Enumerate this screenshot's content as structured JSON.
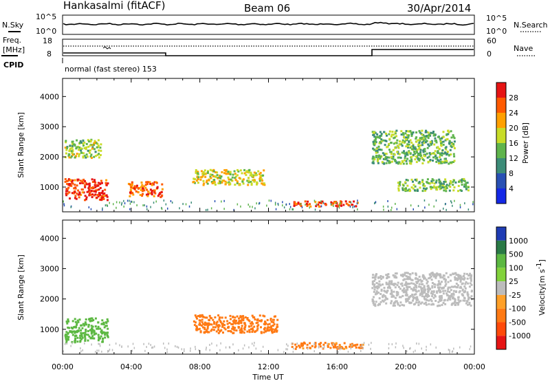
{
  "header": {
    "radar": "Hankasalmi (fitACF)",
    "beam": "Beam 06",
    "date": "30/Apr/2014"
  },
  "noise_panel": {
    "left_label": "N.Sky",
    "right_label": "N.Search",
    "left_ticks": [
      "10^5",
      "10^0"
    ],
    "right_ticks": [
      "10^5",
      "10^0"
    ]
  },
  "freq_panel": {
    "left_label_line1": "Freq.",
    "left_label_line2": "[MHz]",
    "left_ticks": [
      "18",
      "8"
    ],
    "right_label": "Nave",
    "right_ticks": [
      "60",
      "0"
    ]
  },
  "cpid": {
    "label": "CPID",
    "text": "normal (fast stereo) 153"
  },
  "colors": {
    "power": [
      "#1428e6",
      "#2850b4",
      "#3c8c78",
      "#5fb44c",
      "#c8dc28",
      "#ffa000",
      "#ff5a00",
      "#e61414"
    ],
    "velocity": [
      "#1e3cb4",
      "#2a7a46",
      "#5cb842",
      "#82d23c",
      "#bcbcbc",
      "#ffa028",
      "#ff7a14",
      "#ff4a0a",
      "#e61414"
    ],
    "ground_scatter": "#bcbcbc"
  },
  "chart_data": [
    {
      "type": "heatmap",
      "title": "Power [dB]",
      "xlabel": "Time UT",
      "ylabel": "Slant Range [km]",
      "xlim": [
        0,
        24
      ],
      "ylim": [
        180,
        4600
      ],
      "x_ticks": [
        "00:00",
        "04:00",
        "08:00",
        "12:00",
        "16:00",
        "20:00",
        "00:00"
      ],
      "y_ticks": [
        1000,
        2000,
        3000,
        4000
      ],
      "colorbar": {
        "label": "Power [dB]",
        "range": [
          0,
          32
        ],
        "ticks": [
          4,
          8,
          12,
          16,
          20,
          24,
          28
        ]
      },
      "features": [
        {
          "time_start": 0.1,
          "time_end": 2.6,
          "range_start": 600,
          "range_end": 1300,
          "value": 28
        },
        {
          "time_start": 3.8,
          "time_end": 5.8,
          "range_start": 700,
          "range_end": 1200,
          "value": 26
        },
        {
          "time_start": 13.3,
          "time_end": 17.2,
          "range_start": 380,
          "range_end": 560,
          "value": 27
        },
        {
          "time_start": 0.1,
          "time_end": 2.2,
          "range_start": 2000,
          "range_end": 2600,
          "value": 16
        },
        {
          "time_start": 7.5,
          "time_end": 11.8,
          "range_start": 1100,
          "range_end": 1600,
          "value": 18
        },
        {
          "time_start": 18.0,
          "time_end": 22.8,
          "range_start": 1800,
          "range_end": 2900,
          "value": 14
        },
        {
          "time_start": 19.5,
          "time_end": 23.6,
          "range_start": 900,
          "range_end": 1300,
          "value": 15
        }
      ]
    },
    {
      "type": "heatmap",
      "title": "Velocity [m s^-1]",
      "xlabel": "Time UT",
      "ylabel": "Slant Range [km]",
      "xlim": [
        0,
        24
      ],
      "ylim": [
        180,
        4600
      ],
      "x_ticks": [
        "00:00",
        "04:00",
        "08:00",
        "12:00",
        "16:00",
        "20:00",
        "00:00"
      ],
      "y_ticks": [
        1000,
        2000,
        3000,
        4000
      ],
      "colorbar": {
        "label_main": "Velocity",
        "label_unit": "[m s",
        "label_exp": "-1",
        "label_close": "]",
        "ticks": [
          "1000",
          "500",
          "100",
          "25",
          "-25",
          "-100",
          "-500",
          "-1000"
        ]
      },
      "features": [
        {
          "time_start": 0.1,
          "time_end": 2.6,
          "range_start": 600,
          "range_end": 1400,
          "value": 300
        },
        {
          "time_start": 7.6,
          "time_end": 12.5,
          "range_start": 900,
          "range_end": 1500,
          "value": -300
        },
        {
          "time_start": 13.3,
          "time_end": 17.5,
          "range_start": 380,
          "range_end": 600,
          "value": -150
        },
        {
          "time_start": 18.0,
          "time_end": 23.8,
          "range_start": 1800,
          "range_end": 2900,
          "value": 0
        }
      ]
    }
  ]
}
